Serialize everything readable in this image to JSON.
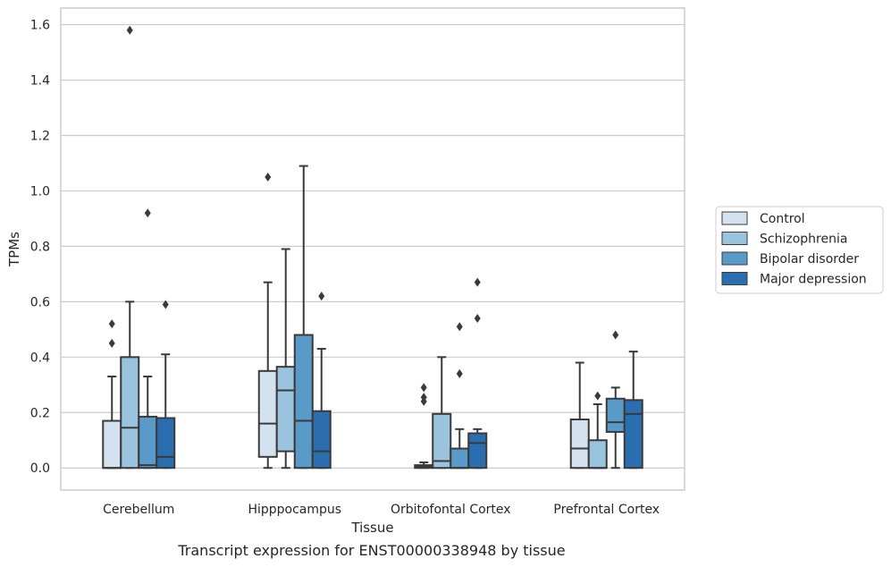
{
  "chart_data": {
    "type": "box",
    "xlabel": "Tissue",
    "ylabel": "TPMs",
    "ylim": [
      -0.08,
      1.66
    ],
    "yticks": [
      "0.0",
      "0.2",
      "0.4",
      "0.6",
      "0.8",
      "1.0",
      "1.2",
      "1.4",
      "1.6"
    ],
    "grid": true,
    "legend_position": "right",
    "categories": [
      "Cerebellum",
      "Hipppocampus",
      "Orbitofontal Cortex",
      "Prefrontal Cortex"
    ],
    "series": [
      {
        "name": "Control",
        "color": "#d4e2f0",
        "boxes": [
          {
            "whislo": 0.0,
            "q1": 0.0,
            "med": 0.0,
            "q3": 0.17,
            "whishi": 0.33,
            "fliers": [
              0.45,
              0.52
            ]
          },
          {
            "whislo": 0.0,
            "q1": 0.04,
            "med": 0.16,
            "q3": 0.35,
            "whishi": 0.67,
            "fliers": [
              1.05
            ]
          },
          {
            "whislo": 0.0,
            "q1": 0.0,
            "med": 0.005,
            "q3": 0.01,
            "whishi": 0.02,
            "fliers": [
              0.24,
              0.255,
              0.29
            ]
          },
          {
            "whislo": 0.0,
            "q1": 0.0,
            "med": 0.07,
            "q3": 0.175,
            "whishi": 0.38,
            "fliers": []
          }
        ]
      },
      {
        "name": "Schizophrenia",
        "color": "#9ac4dd",
        "boxes": [
          {
            "whislo": 0.0,
            "q1": 0.0,
            "med": 0.145,
            "q3": 0.4,
            "whishi": 0.6,
            "fliers": [
              1.58
            ]
          },
          {
            "whislo": 0.0,
            "q1": 0.06,
            "med": 0.28,
            "q3": 0.365,
            "whishi": 0.79,
            "fliers": []
          },
          {
            "whislo": 0.0,
            "q1": 0.0,
            "med": 0.025,
            "q3": 0.195,
            "whishi": 0.4,
            "fliers": []
          },
          {
            "whislo": 0.0,
            "q1": 0.0,
            "med": 0.0,
            "q3": 0.1,
            "whishi": 0.23,
            "fliers": [
              0.26
            ]
          }
        ]
      },
      {
        "name": "Bipolar disorder",
        "color": "#5a9ac8",
        "boxes": [
          {
            "whislo": 0.0,
            "q1": 0.0,
            "med": 0.01,
            "q3": 0.185,
            "whishi": 0.33,
            "fliers": [
              0.92
            ]
          },
          {
            "whislo": 0.0,
            "q1": 0.0,
            "med": 0.17,
            "q3": 0.48,
            "whishi": 1.09,
            "fliers": []
          },
          {
            "whislo": 0.0,
            "q1": 0.0,
            "med": 0.0,
            "q3": 0.07,
            "whishi": 0.14,
            "fliers": [
              0.34,
              0.51
            ]
          },
          {
            "whislo": 0.0,
            "q1": 0.13,
            "med": 0.165,
            "q3": 0.25,
            "whishi": 0.29,
            "fliers": [
              0.48
            ]
          }
        ]
      },
      {
        "name": "Major depression",
        "color": "#2a6eb0",
        "boxes": [
          {
            "whislo": 0.0,
            "q1": 0.0,
            "med": 0.04,
            "q3": 0.18,
            "whishi": 0.41,
            "fliers": [
              0.59
            ]
          },
          {
            "whislo": 0.0,
            "q1": 0.0,
            "med": 0.06,
            "q3": 0.205,
            "whishi": 0.43,
            "fliers": [
              0.62
            ]
          },
          {
            "whislo": 0.0,
            "q1": 0.0,
            "med": 0.09,
            "q3": 0.125,
            "whishi": 0.14,
            "fliers": [
              0.54,
              0.67
            ]
          },
          {
            "whislo": 0.0,
            "q1": 0.0,
            "med": 0.195,
            "q3": 0.245,
            "whishi": 0.42,
            "fliers": []
          }
        ]
      }
    ],
    "caption": "Transcript expression for ENST00000338948 by tissue"
  }
}
